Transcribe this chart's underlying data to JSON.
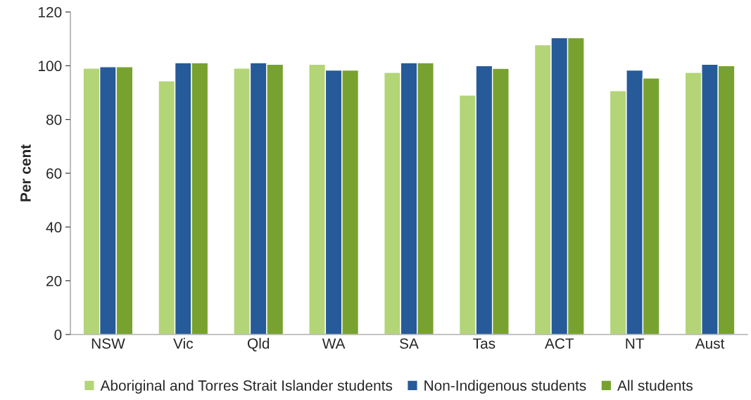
{
  "chart_data": {
    "type": "bar",
    "ylabel": "Per cent",
    "categories": [
      "NSW",
      "Vic",
      "Qld",
      "WA",
      "SA",
      "Tas",
      "ACT",
      "NT",
      "Aust"
    ],
    "series": [
      {
        "name": "Aboriginal and Torres Strait Islander students",
        "color": "#b3d577",
        "values": [
          99.1,
          94.4,
          99.1,
          100.5,
          97.5,
          89.1,
          107.8,
          90.7,
          97.5
        ]
      },
      {
        "name": "Non-Indigenous students",
        "color": "#265a99",
        "values": [
          99.6,
          101.1,
          101.1,
          98.4,
          101.1,
          100.0,
          110.4,
          98.4,
          100.5
        ]
      },
      {
        "name": "All students",
        "color": "#78a22f",
        "values": [
          99.6,
          101.1,
          100.5,
          98.4,
          101.1,
          99.0,
          110.4,
          95.4,
          100.0
        ]
      }
    ],
    "ylim": [
      0,
      120
    ],
    "yticks": [
      0,
      20,
      40,
      60,
      80,
      100,
      120
    ],
    "grid": false,
    "legend": "bottom"
  }
}
